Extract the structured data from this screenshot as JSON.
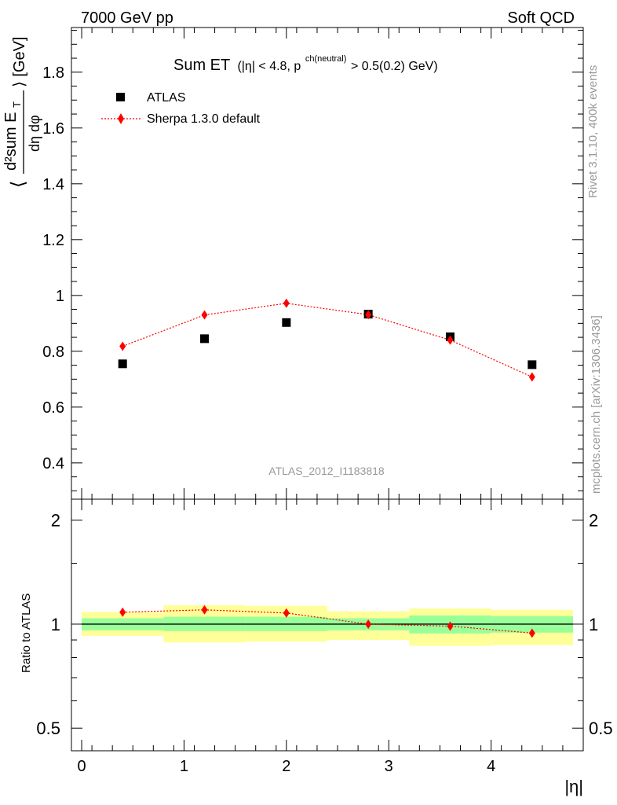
{
  "header": {
    "left": "7000 GeV pp",
    "right": "Soft QCD"
  },
  "side_notes": {
    "rivet": "Rivet 3.1.10,  400k events",
    "source": "mcplots.cern.ch [arXiv:1306.3436]"
  },
  "watermark": "ATLAS_2012_I1183818",
  "main_title": {
    "main": "Sum ET",
    "cut_prefix": "(|η| < 4.8, p",
    "cut_sup": "ch(neutral)",
    "cut_suffix": " > 0.5(0.2) GeV)"
  },
  "y_label": {
    "open": "⟨",
    "num": "d²sum E",
    "num_sub": "T",
    "den": "dη dφ",
    "close": "⟩ [GeV]"
  },
  "ratio_label": "Ratio to ATLAS",
  "x_label": "|η|",
  "chart_data": [
    {
      "type": "scatter",
      "panel": "main",
      "x": [
        0.4,
        1.2,
        2.0,
        2.8,
        3.6,
        4.4
      ],
      "x_bin_edges": [
        0.0,
        0.8,
        1.6,
        2.4,
        3.2,
        4.0,
        4.8
      ],
      "series": [
        {
          "name": "ATLAS",
          "marker": "square",
          "color": "#000000",
          "values": [
            0.755,
            0.845,
            0.903,
            0.933,
            0.852,
            0.752
          ]
        },
        {
          "name": "Sherpa 1.3.0 default",
          "marker": "diamond",
          "line": "dotted",
          "color": "#ff0000",
          "values": [
            0.818,
            0.93,
            0.972,
            0.931,
            0.84,
            0.708
          ]
        }
      ],
      "xlim": [
        -0.1,
        4.9
      ],
      "ylim": [
        0.27,
        1.96
      ],
      "y_ticks": [
        0.4,
        0.6,
        0.8,
        1,
        1.2,
        1.4,
        1.6,
        1.8
      ],
      "y_tick_labels": [
        "0.4",
        "0.6",
        "0.8",
        "1",
        "1.2",
        "1.4",
        "1.6",
        "1.8"
      ],
      "grid": false,
      "legend": "top-left"
    },
    {
      "type": "scatter",
      "panel": "ratio",
      "x": [
        0.4,
        1.2,
        2.0,
        2.8,
        3.6,
        4.4
      ],
      "bands": {
        "inner_color": "#99ff99",
        "outer_color": "#ffff99",
        "inner": [
          [
            0.96,
            1.04
          ],
          [
            0.955,
            1.05
          ],
          [
            0.955,
            1.05
          ],
          [
            0.96,
            1.04
          ],
          [
            0.94,
            1.06
          ],
          [
            0.945,
            1.055
          ]
        ],
        "outer": [
          [
            0.925,
            1.085
          ],
          [
            0.885,
            1.135
          ],
          [
            0.89,
            1.13
          ],
          [
            0.9,
            1.09
          ],
          [
            0.865,
            1.11
          ],
          [
            0.87,
            1.1
          ]
        ]
      },
      "series": [
        {
          "name": "Sherpa 1.3.0 default",
          "marker": "diamond",
          "line": "dotted",
          "color": "#ff0000",
          "values": [
            1.083,
            1.1,
            1.077,
            1.0,
            0.987,
            0.942
          ]
        }
      ],
      "reference_line": 1,
      "scale": "log",
      "ylim": [
        0.43,
        2.3
      ],
      "y_ticks": [
        0.5,
        1,
        2
      ],
      "y_tick_labels": [
        "0.5",
        "1",
        "2"
      ],
      "x_ticks": [
        0,
        1,
        2,
        3,
        4
      ],
      "x_tick_labels": [
        "0",
        "1",
        "2",
        "3",
        "4"
      ]
    }
  ]
}
